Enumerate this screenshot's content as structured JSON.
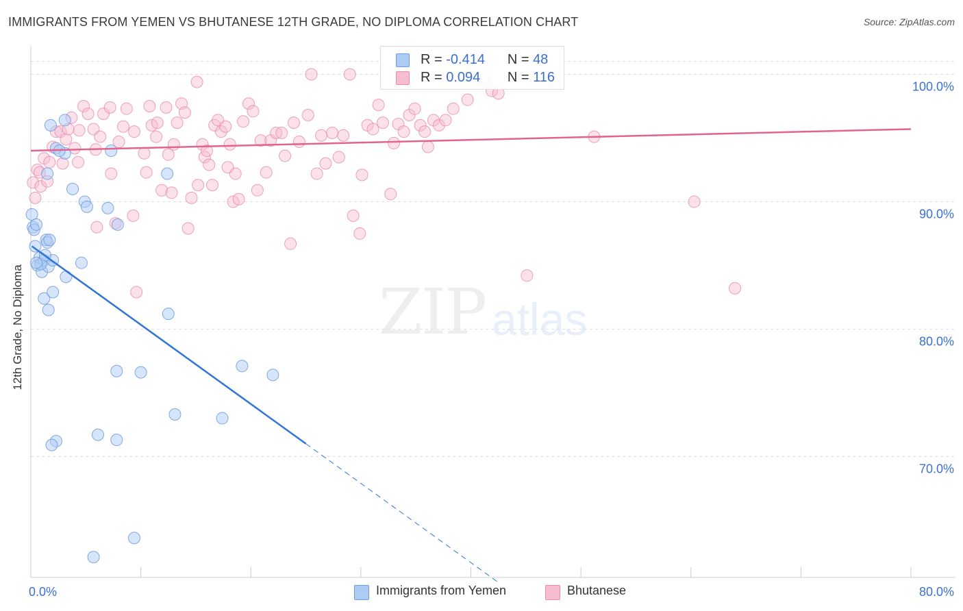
{
  "header": {
    "title": "IMMIGRANTS FROM YEMEN VS BHUTANESE 12TH GRADE, NO DIPLOMA CORRELATION CHART",
    "source": "Source: ZipAtlas.com"
  },
  "watermark": {
    "part1": "ZIP",
    "part2": "atlas"
  },
  "legend": {
    "r_label": "R =",
    "n_label": "N =",
    "series": [
      {
        "name": "Immigrants from Yemen",
        "r": "-0.414",
        "n": "48"
      },
      {
        "name": "Bhutanese",
        "r": "0.094",
        "n": "116"
      }
    ]
  },
  "colors": {
    "yemen_fill": "#aecbf3",
    "yemen_stroke": "#6b9ae0",
    "yemen_line": "#2f74d8",
    "bhutan_fill": "#f6bdd0",
    "bhutan_stroke": "#e98aab",
    "bhutan_line": "#e0648f",
    "axis_text": "#3a6fd8",
    "grid": "#dddddd"
  },
  "chart_data": {
    "type": "scatter",
    "title": "IMMIGRANTS FROM YEMEN VS BHUTANESE 12TH GRADE, NO DIPLOMA CORRELATION CHART",
    "xlabel": "",
    "ylabel": "12th Grade, No Diploma",
    "xlim": [
      0,
      80
    ],
    "ylim": [
      60.5,
      102.5
    ],
    "x_tick_labels": [
      "0.0%",
      "80.0%"
    ],
    "y_ticks": [
      70,
      80,
      90,
      100
    ],
    "y_tick_labels": [
      "70.0%",
      "80.0%",
      "90.0%",
      "100.0%"
    ],
    "grid": true,
    "legend_position": "top-center",
    "series": [
      {
        "name": "Immigrants from Yemen",
        "r": -0.414,
        "n": 48,
        "trend": {
          "x0": 0.1,
          "y0": 86.5,
          "x1": 25,
          "y1": 71,
          "dash_to_x": 42.5
        },
        "points": [
          [
            0.1,
            89.0
          ],
          [
            0.2,
            88.0
          ],
          [
            0.3,
            87.8
          ],
          [
            0.5,
            88.2
          ],
          [
            0.4,
            86.5
          ],
          [
            0.6,
            85.0
          ],
          [
            0.8,
            85.6
          ],
          [
            1.0,
            84.5
          ],
          [
            1.2,
            85.4
          ],
          [
            1.4,
            87.0
          ],
          [
            1.5,
            86.8
          ],
          [
            1.6,
            84.9
          ],
          [
            1.7,
            87.0
          ],
          [
            2.0,
            85.4
          ],
          [
            1.2,
            82.4
          ],
          [
            2.0,
            82.9
          ],
          [
            1.5,
            92.2
          ],
          [
            2.3,
            94.2
          ],
          [
            3.1,
            93.8
          ],
          [
            3.1,
            96.4
          ],
          [
            3.2,
            84.1
          ],
          [
            1.6,
            81.5
          ],
          [
            3.8,
            91.0
          ],
          [
            4.6,
            85.2
          ],
          [
            4.9,
            90.0
          ],
          [
            5.1,
            89.6
          ],
          [
            7.3,
            94.0
          ],
          [
            7.0,
            89.5
          ],
          [
            7.9,
            88.2
          ],
          [
            12.4,
            92.2
          ],
          [
            12.5,
            81.2
          ],
          [
            7.8,
            76.7
          ],
          [
            10.0,
            76.6
          ],
          [
            13.1,
            73.3
          ],
          [
            17.4,
            73.0
          ],
          [
            19.2,
            77.1
          ],
          [
            22.0,
            76.4
          ],
          [
            6.1,
            71.7
          ],
          [
            7.8,
            71.3
          ],
          [
            2.3,
            71.2
          ],
          [
            1.9,
            70.9
          ],
          [
            9.4,
            63.6
          ],
          [
            5.7,
            62.1
          ],
          [
            0.9,
            85.1
          ],
          [
            1.3,
            85.8
          ],
          [
            0.5,
            85.2
          ],
          [
            2.6,
            94.0
          ],
          [
            1.8,
            96.0
          ]
        ]
      },
      {
        "name": "Bhutanese",
        "r": 0.094,
        "n": 116,
        "trend": {
          "x0": 0,
          "y0": 94.0,
          "x1": 80,
          "y1": 95.7
        },
        "points": [
          [
            0.2,
            91.5
          ],
          [
            0.4,
            90.3
          ],
          [
            0.6,
            92.5
          ],
          [
            0.9,
            91.2
          ],
          [
            1.2,
            93.4
          ],
          [
            1.7,
            93.1
          ],
          [
            2.0,
            94.3
          ],
          [
            2.3,
            95.5
          ],
          [
            2.7,
            95.5
          ],
          [
            3.2,
            94.9
          ],
          [
            3.4,
            95.7
          ],
          [
            3.7,
            96.6
          ],
          [
            4.3,
            93.1
          ],
          [
            4.4,
            95.6
          ],
          [
            4.8,
            97.5
          ],
          [
            5.2,
            96.9
          ],
          [
            5.7,
            95.7
          ],
          [
            5.9,
            94.1
          ],
          [
            6.3,
            95.1
          ],
          [
            6.6,
            96.9
          ],
          [
            7.2,
            97.4
          ],
          [
            7.3,
            92.2
          ],
          [
            8.0,
            94.7
          ],
          [
            8.4,
            95.9
          ],
          [
            8.7,
            97.3
          ],
          [
            9.3,
            88.9
          ],
          [
            9.4,
            95.5
          ],
          [
            9.6,
            82.9
          ],
          [
            10.3,
            93.8
          ],
          [
            10.5,
            92.3
          ],
          [
            10.8,
            97.5
          ],
          [
            11.0,
            96.0
          ],
          [
            11.5,
            96.2
          ],
          [
            11.9,
            90.9
          ],
          [
            12.3,
            97.4
          ],
          [
            12.5,
            93.7
          ],
          [
            12.8,
            90.7
          ],
          [
            13.0,
            94.5
          ],
          [
            13.3,
            96.2
          ],
          [
            13.7,
            97.7
          ],
          [
            14.0,
            97.0
          ],
          [
            14.3,
            87.9
          ],
          [
            14.6,
            90.3
          ],
          [
            15.1,
            99.4
          ],
          [
            15.2,
            91.3
          ],
          [
            15.6,
            94.5
          ],
          [
            15.8,
            93.5
          ],
          [
            16.2,
            92.9
          ],
          [
            16.5,
            91.3
          ],
          [
            16.7,
            96.0
          ],
          [
            17.0,
            96.4
          ],
          [
            17.3,
            95.5
          ],
          [
            17.7,
            95.9
          ],
          [
            18.1,
            94.5
          ],
          [
            18.4,
            90.0
          ],
          [
            18.6,
            92.2
          ],
          [
            18.9,
            90.2
          ],
          [
            19.3,
            96.3
          ],
          [
            19.8,
            97.7
          ],
          [
            20.2,
            97.1
          ],
          [
            20.6,
            90.9
          ],
          [
            20.9,
            94.8
          ],
          [
            21.4,
            92.3
          ],
          [
            21.8,
            94.8
          ],
          [
            22.3,
            95.4
          ],
          [
            22.8,
            95.4
          ],
          [
            23.1,
            93.6
          ],
          [
            23.6,
            86.7
          ],
          [
            23.9,
            96.2
          ],
          [
            24.4,
            94.7
          ],
          [
            25.2,
            96.8
          ],
          [
            25.5,
            100.0
          ],
          [
            26.0,
            92.2
          ],
          [
            26.4,
            95.2
          ],
          [
            26.8,
            93.0
          ],
          [
            27.4,
            95.4
          ],
          [
            28.0,
            93.5
          ],
          [
            28.4,
            95.2
          ],
          [
            29.0,
            100.0
          ],
          [
            29.3,
            88.9
          ],
          [
            29.9,
            87.5
          ],
          [
            30.1,
            92.1
          ],
          [
            30.6,
            96.0
          ],
          [
            31.1,
            95.7
          ],
          [
            31.6,
            97.6
          ],
          [
            32.0,
            96.2
          ],
          [
            32.7,
            90.6
          ],
          [
            33.0,
            94.6
          ],
          [
            33.4,
            96.1
          ],
          [
            33.9,
            95.5
          ],
          [
            34.4,
            96.8
          ],
          [
            34.9,
            97.3
          ],
          [
            35.4,
            96.0
          ],
          [
            35.8,
            95.5
          ],
          [
            36.1,
            94.3
          ],
          [
            36.6,
            96.4
          ],
          [
            37.1,
            96.0
          ],
          [
            37.7,
            96.4
          ],
          [
            38.4,
            97.3
          ],
          [
            39.7,
            98.0
          ],
          [
            41.2,
            99.6
          ],
          [
            41.9,
            98.7
          ],
          [
            42.5,
            98.5
          ],
          [
            45.1,
            84.2
          ],
          [
            51.2,
            95.1
          ],
          [
            60.3,
            90.0
          ],
          [
            64.0,
            83.2
          ],
          [
            0.8,
            92.3
          ],
          [
            1.5,
            91.6
          ],
          [
            2.9,
            93.0
          ],
          [
            4.0,
            94.2
          ],
          [
            6.0,
            88.0
          ],
          [
            7.7,
            88.3
          ],
          [
            11.4,
            95.1
          ],
          [
            16.0,
            94.0
          ],
          [
            17.9,
            92.7
          ]
        ]
      }
    ]
  }
}
